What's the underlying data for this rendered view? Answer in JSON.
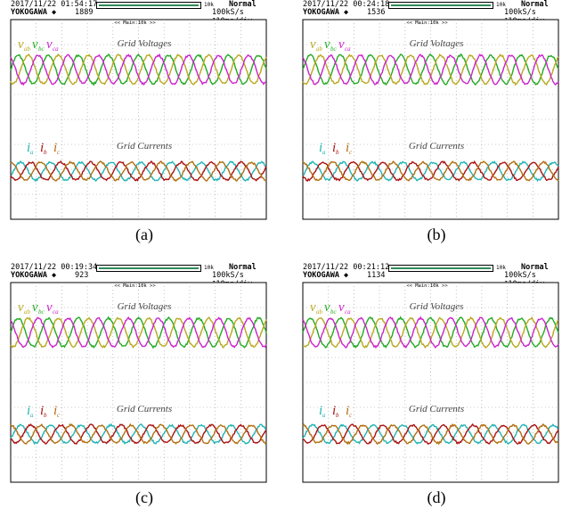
{
  "colors": {
    "green": "#22aa22",
    "olive": "#b8a81e",
    "magenta": "#cc22cc",
    "cyan": "#22b3b3",
    "red": "#aa1111",
    "brown": "#b06f10"
  },
  "panels": [
    {
      "caption": "(a)",
      "timestamp": "2017/11/22 01:54:17",
      "count": "1889",
      "brand": "YOKOGAWA ◆",
      "mode": "Normal",
      "rate": "100kS/s ⊺10ms/div",
      "bar_label": "10k",
      "zoom": "<< Main:10k >>",
      "voltage_title": "Grid Voltages",
      "current_title": "Grid Currents",
      "voltage_labels": [
        "v",
        "v",
        "v"
      ],
      "voltage_subs": [
        "ab",
        "bc",
        "ca"
      ],
      "current_labels": [
        "i",
        "i",
        "i"
      ],
      "current_subs": [
        "a",
        "b",
        "c"
      ]
    },
    {
      "caption": "(b)",
      "timestamp": "2017/11/22 00:24:18",
      "count": "1536",
      "brand": "YOKOGAWA ◆",
      "mode": "Normal",
      "rate": "100kS/s ⊺10ms/div",
      "bar_label": "10k",
      "zoom": "<< Main:10k >>",
      "voltage_title": "Grid Voltages",
      "current_title": "Grid Currents",
      "voltage_labels": [
        "v",
        "v",
        "v"
      ],
      "voltage_subs": [
        "ab",
        "bc",
        "ca"
      ],
      "current_labels": [
        "i",
        "i",
        "i"
      ],
      "current_subs": [
        "a",
        "b",
        "c"
      ]
    },
    {
      "caption": "(c)",
      "timestamp": "2017/11/22 00:19:34",
      "count": "923",
      "brand": "YOKOGAWA ◆",
      "mode": "Normal",
      "rate": "100kS/s ⊺10ms/div",
      "bar_label": "10k",
      "zoom": "<< Main:10k >>",
      "voltage_title": "Grid Voltages",
      "current_title": "Grid Currents",
      "voltage_labels": [
        "v",
        "v",
        "v"
      ],
      "voltage_subs": [
        "ab",
        "bc",
        "ca"
      ],
      "current_labels": [
        "i",
        "i",
        "i"
      ],
      "current_subs": [
        "a",
        "b",
        "c"
      ]
    },
    {
      "caption": "(d)",
      "timestamp": "2017/11/22 00:21:12",
      "count": "1134",
      "brand": "YOKOGAWA ◆",
      "mode": "Normal",
      "rate": "100kS/s ⊺10ms/div",
      "bar_label": "10k",
      "zoom": "<< Main:10k >>",
      "voltage_title": "Grid Voltages",
      "current_title": "Grid Currents",
      "voltage_labels": [
        "v",
        "v",
        "v"
      ],
      "voltage_subs": [
        "ab",
        "bc",
        "ca"
      ],
      "current_labels": [
        "i",
        "i",
        "i"
      ],
      "current_subs": [
        "a",
        "b",
        "c"
      ]
    }
  ],
  "chart_data": [
    {
      "type": "line",
      "title": "Grid Voltages",
      "series": [
        {
          "name": "v_ab",
          "phase_deg": 0
        },
        {
          "name": "v_bc",
          "phase_deg": -120
        },
        {
          "name": "v_ca",
          "phase_deg": 120
        }
      ],
      "cycles": 8.5,
      "grid": true
    },
    {
      "type": "line",
      "title": "Grid Currents",
      "series": [
        {
          "name": "i_a",
          "phase_deg": -30
        },
        {
          "name": "i_b",
          "phase_deg": -150
        },
        {
          "name": "i_c",
          "phase_deg": 90
        }
      ],
      "cycles": 8.5,
      "grid": true
    }
  ]
}
